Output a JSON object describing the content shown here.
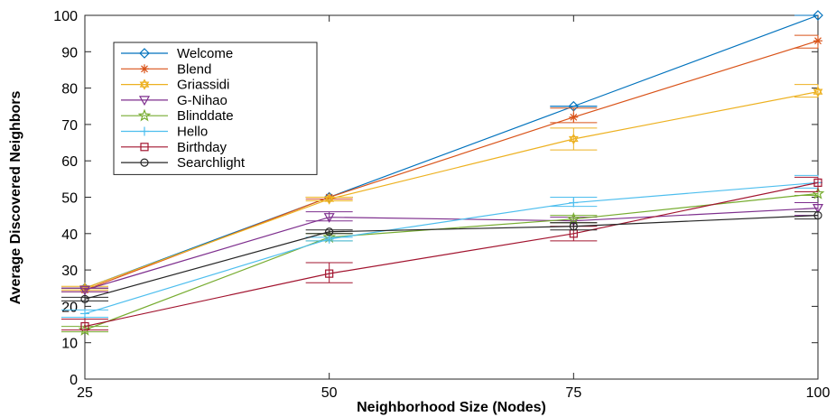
{
  "chart_data": {
    "type": "line",
    "title": "",
    "xlabel": "Neighborhood Size (Nodes)",
    "ylabel": "Average Discovered Neighbors",
    "x": [
      25,
      50,
      75,
      100
    ],
    "xlim": [
      25,
      100
    ],
    "ylim": [
      0,
      100
    ],
    "xticks": [
      25,
      50,
      75,
      100
    ],
    "yticks": [
      0,
      10,
      20,
      30,
      40,
      50,
      60,
      70,
      80,
      90,
      100
    ],
    "grid": false,
    "legend_position": "top-left",
    "series": [
      {
        "name": "Welcome",
        "color": "#0072BD",
        "marker": "diamond",
        "values": [
          25,
          50,
          75,
          100
        ],
        "error_low": [
          25,
          50,
          75,
          100
        ],
        "error_high": [
          25,
          50,
          75,
          100
        ]
      },
      {
        "name": "Blend",
        "color": "#D95319",
        "marker": "asterisk",
        "values": [
          24.5,
          50,
          72,
          93
        ],
        "error_low": [
          24,
          49.5,
          70.5,
          91
        ],
        "error_high": [
          25,
          50,
          74.5,
          94.5
        ]
      },
      {
        "name": "Griassidi",
        "color": "#EDB120",
        "marker": "hexagram",
        "values": [
          25,
          49.5,
          66,
          79
        ],
        "error_low": [
          24.5,
          49,
          63,
          77.5
        ],
        "error_high": [
          25.5,
          50,
          69,
          81
        ]
      },
      {
        "name": "G-Nihao",
        "color": "#7E2F8E",
        "marker": "triangle-down",
        "values": [
          24.5,
          44.5,
          43.5,
          47
        ],
        "error_low": [
          24,
          43.5,
          43,
          45
        ],
        "error_high": [
          25,
          46,
          44.5,
          48.5
        ]
      },
      {
        "name": "Blinddate",
        "color": "#77AC30",
        "marker": "pentagram",
        "values": [
          13.5,
          39,
          44,
          51
        ],
        "error_low": [
          13,
          38,
          43,
          50.5
        ],
        "error_high": [
          14.5,
          40,
          45,
          51.5
        ]
      },
      {
        "name": "Hello",
        "color": "#4DBEEE",
        "marker": "plus",
        "values": [
          18,
          38.5,
          48.5,
          54
        ],
        "error_low": [
          17,
          38,
          47.5,
          52.5
        ],
        "error_high": [
          19,
          39,
          50,
          56
        ]
      },
      {
        "name": "Birthday",
        "color": "#A2142F",
        "marker": "square",
        "values": [
          14.5,
          29,
          40,
          54
        ],
        "error_low": [
          13.5,
          26.5,
          38,
          51.5
        ],
        "error_high": [
          16.5,
          32,
          42,
          55.5
        ]
      },
      {
        "name": "Searchlight",
        "color": "#262626",
        "marker": "circle",
        "values": [
          22,
          40.5,
          42,
          45
        ],
        "error_low": [
          21.5,
          40,
          41,
          44
        ],
        "error_high": [
          22.5,
          41,
          43,
          46
        ]
      }
    ]
  }
}
